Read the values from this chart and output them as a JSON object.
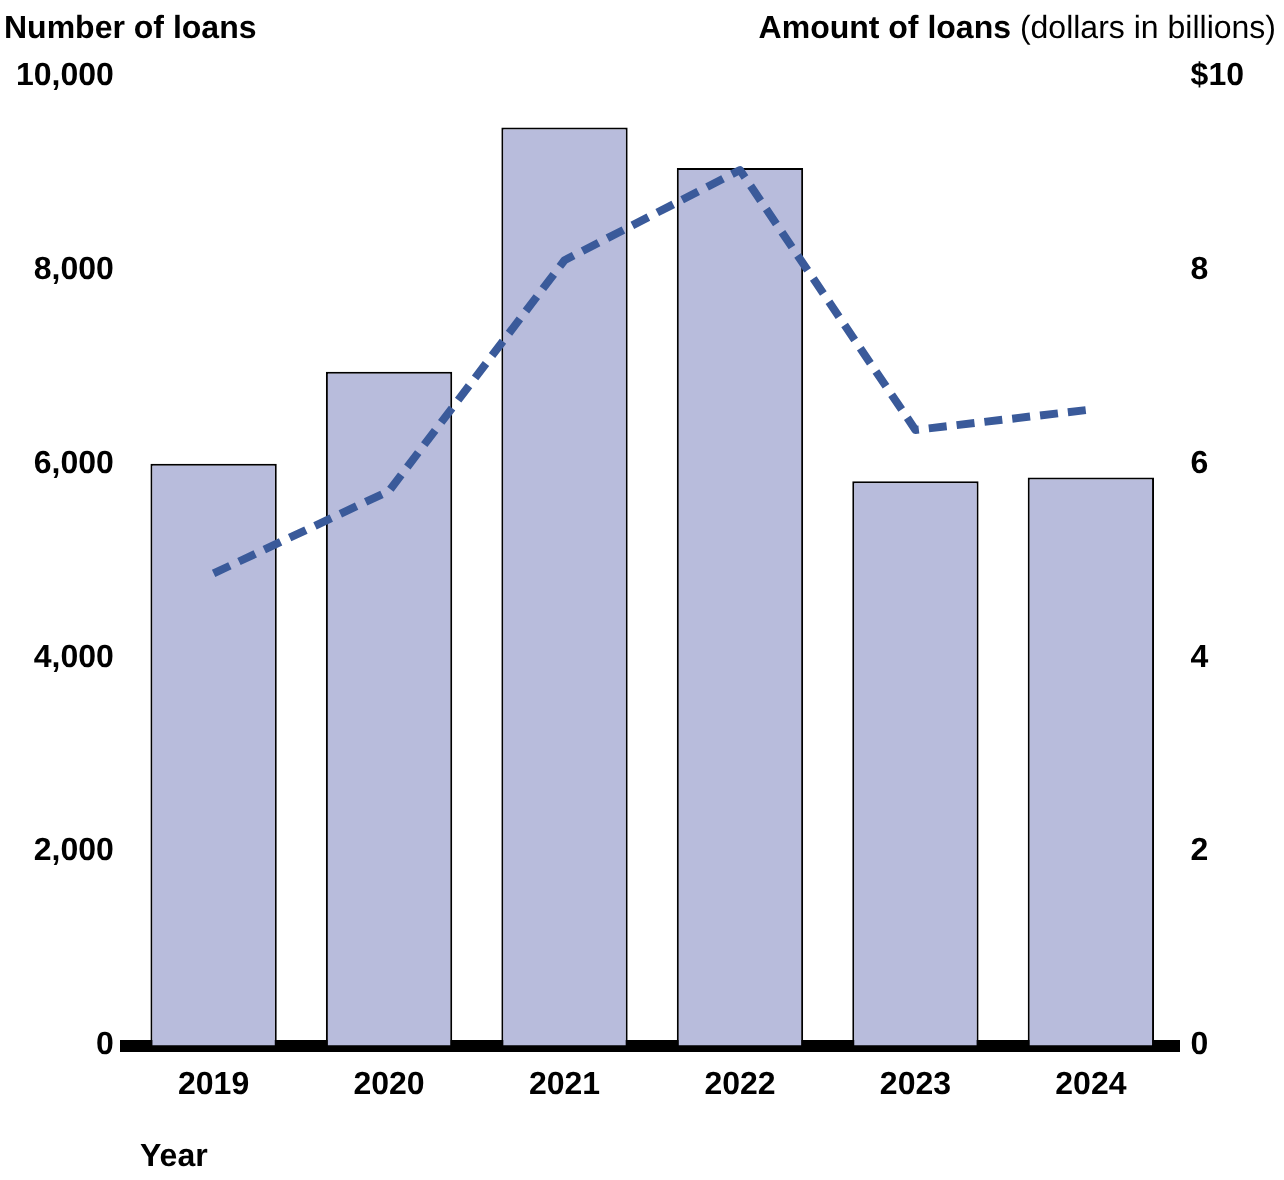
{
  "chart_data": {
    "type": "bar",
    "ylabel": "Number of loans",
    "y2label": "Amount of loans (dollars in billions)",
    "xlabel": "Year",
    "categories": [
      "2019",
      "2020",
      "2021",
      "2022",
      "2023",
      "2024"
    ],
    "series": [
      {
        "color": "#b8bcdc",
        "values": [
          6000,
          6950,
          9470,
          9050,
          5820,
          5860
        ]
      },
      {
        "type": "line",
        "axis": "y2",
        "color": "#3a5a9a",
        "line_style": "dashed",
        "values": [
          4.87,
          5.72,
          8.1,
          9.03,
          6.35,
          6.56
        ]
      }
    ],
    "ylim": [
      0,
      10000
    ],
    "yticks": [
      0,
      {
        "value": 2000,
        "label": "2,000"
      },
      {
        "value": 4000,
        "label": "4,000"
      },
      {
        "value": 6000,
        "label": "6,000"
      },
      {
        "value": 8000,
        "label": "8,000"
      },
      {
        "value": 10000,
        "label": "10,000"
      }
    ],
    "y2lim": [
      0,
      10
    ],
    "y2ticks": [
      0,
      2,
      4,
      6,
      8,
      {
        "value": 10,
        "label": "$10"
      }
    ],
    "grid": false,
    "legend": false
  }
}
